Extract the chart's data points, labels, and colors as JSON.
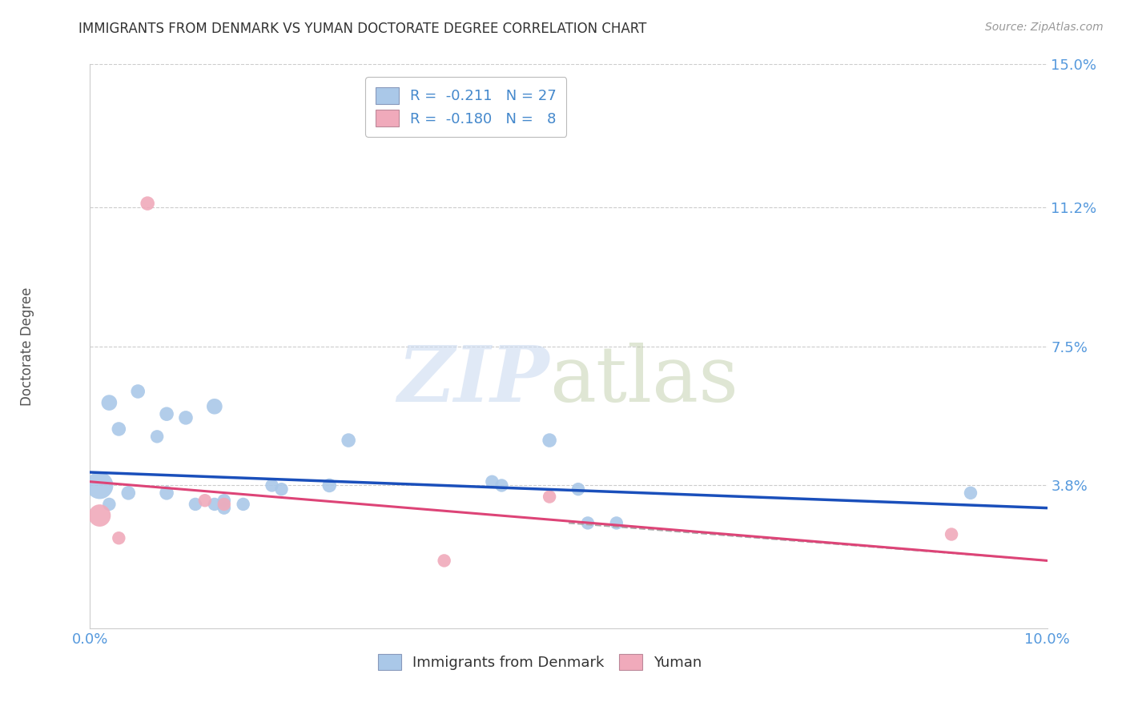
{
  "title": "IMMIGRANTS FROM DENMARK VS YUMAN DOCTORATE DEGREE CORRELATION CHART",
  "source": "Source: ZipAtlas.com",
  "ylabel_label": "Doctorate Degree",
  "xlim": [
    0.0,
    0.1
  ],
  "ylim": [
    0.0,
    0.15
  ],
  "xticks": [
    0.0,
    0.02,
    0.04,
    0.06,
    0.08,
    0.1
  ],
  "xticklabels": [
    "0.0%",
    "",
    "",
    "",
    "",
    "10.0%"
  ],
  "yticks": [
    0.0,
    0.038,
    0.075,
    0.112,
    0.15
  ],
  "yticklabels": [
    "",
    "3.8%",
    "7.5%",
    "11.2%",
    "15.0%"
  ],
  "blue_color": "#aac8e8",
  "pink_color": "#f0aabb",
  "line_blue": "#1a4fbb",
  "line_pink": "#dd4477",
  "blue_points": [
    [
      0.002,
      0.06,
      200
    ],
    [
      0.005,
      0.063,
      160
    ],
    [
      0.008,
      0.057,
      160
    ],
    [
      0.01,
      0.056,
      160
    ],
    [
      0.013,
      0.059,
      200
    ],
    [
      0.003,
      0.053,
      160
    ],
    [
      0.007,
      0.051,
      140
    ],
    [
      0.001,
      0.038,
      600
    ],
    [
      0.004,
      0.036,
      160
    ],
    [
      0.008,
      0.036,
      160
    ],
    [
      0.002,
      0.033,
      140
    ],
    [
      0.011,
      0.033,
      140
    ],
    [
      0.013,
      0.033,
      140
    ],
    [
      0.014,
      0.034,
      140
    ],
    [
      0.014,
      0.032,
      140
    ],
    [
      0.016,
      0.033,
      140
    ],
    [
      0.019,
      0.038,
      140
    ],
    [
      0.02,
      0.037,
      140
    ],
    [
      0.025,
      0.038,
      160
    ],
    [
      0.027,
      0.05,
      160
    ],
    [
      0.042,
      0.039,
      140
    ],
    [
      0.043,
      0.038,
      140
    ],
    [
      0.048,
      0.05,
      160
    ],
    [
      0.051,
      0.037,
      140
    ],
    [
      0.052,
      0.028,
      140
    ],
    [
      0.055,
      0.028,
      140
    ],
    [
      0.092,
      0.036,
      140
    ]
  ],
  "pink_points": [
    [
      0.001,
      0.03,
      400
    ],
    [
      0.003,
      0.024,
      140
    ],
    [
      0.006,
      0.113,
      160
    ],
    [
      0.012,
      0.034,
      140
    ],
    [
      0.014,
      0.033,
      140
    ],
    [
      0.037,
      0.018,
      140
    ],
    [
      0.048,
      0.035,
      140
    ],
    [
      0.09,
      0.025,
      140
    ]
  ],
  "blue_line_x": [
    0.0,
    0.1
  ],
  "blue_line_y": [
    0.0415,
    0.032
  ],
  "pink_line_x": [
    0.0,
    0.1
  ],
  "pink_line_y": [
    0.039,
    0.018
  ]
}
